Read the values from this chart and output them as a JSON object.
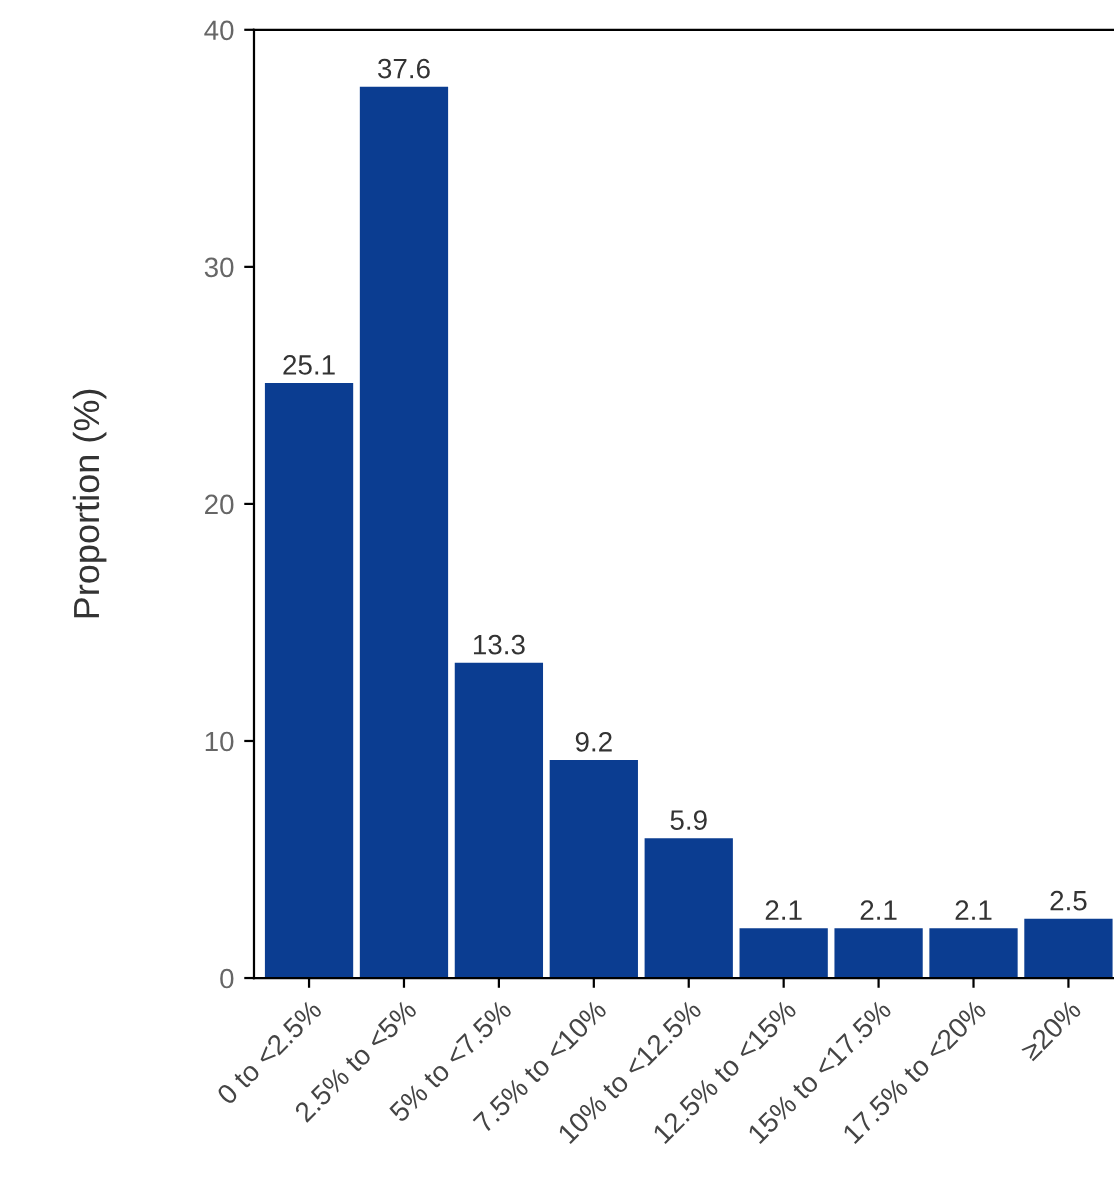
{
  "chart_data": {
    "type": "bar",
    "ylabel": "Proportion (%)",
    "categories": [
      "0 to <2.5%",
      "2.5% to <5%",
      "5% to <7.5%",
      "7.5% to <10%",
      "10% to <12.5%",
      "12.5% to <15%",
      "15% to <17.5%",
      "17.5% to <20%",
      "≥20%"
    ],
    "values": [
      25.1,
      37.6,
      13.3,
      9.2,
      5.9,
      2.1,
      2.1,
      2.1,
      2.5
    ],
    "color": "#0b3d91",
    "ylim": [
      0,
      40
    ],
    "yticks": [
      0,
      10,
      20,
      30,
      40
    ],
    "grid": false,
    "legend": false,
    "data_labels": true
  }
}
